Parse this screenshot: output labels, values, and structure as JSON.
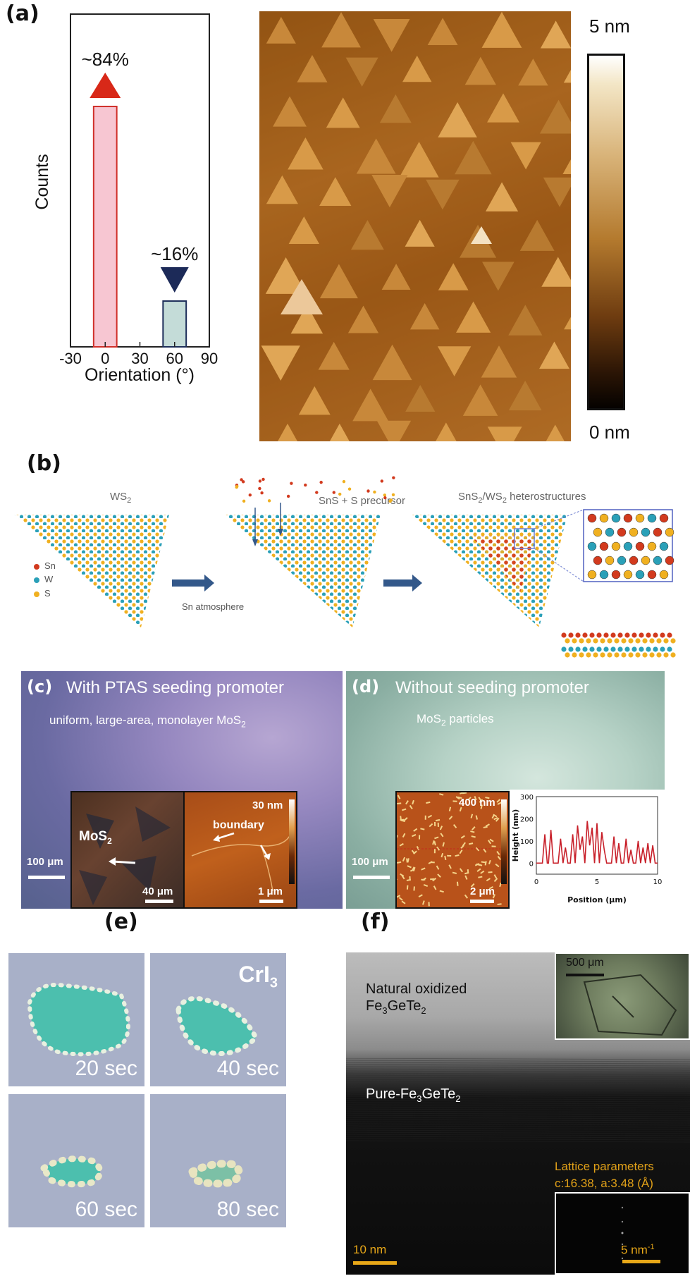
{
  "panel_labels": {
    "a": "(a)",
    "b": "(b)",
    "e": "(e)",
    "f": "(f)"
  },
  "panel_a": {
    "chart_data": {
      "type": "bar",
      "title": "",
      "xlabel": "Orientation (°)",
      "ylabel": "Counts",
      "x_ticks": [
        "-30",
        "0",
        "30",
        "60",
        "90"
      ],
      "xlim": [
        -30,
        90
      ],
      "ylim": [
        0,
        100
      ],
      "bars": [
        {
          "x": 0,
          "width": 20,
          "value": 84,
          "label": "~84%",
          "fill": "#f7c6d2",
          "stroke": "#d0302a",
          "marker": "up-triangle",
          "marker_color": "#d82818"
        },
        {
          "x": 60,
          "width": 20,
          "value": 16,
          "label": "~16%",
          "fill": "#c4dcd8",
          "stroke": "#1d2e5a",
          "marker": "down-triangle",
          "marker_color": "#1c2a58"
        }
      ]
    },
    "colorbar": {
      "max": "5 nm",
      "min": "0 nm"
    }
  },
  "panel_b": {
    "stage1_title": "WS",
    "stage1_sub": "2",
    "stage2_title": "SnS + S precursor",
    "stage3_pre": "SnS",
    "stage3_sub1": "2",
    "stage3_mid": "/WS",
    "stage3_sub2": "2",
    "stage3_post": " heterostructures",
    "arrow_label": "Sn atmosphere",
    "legend": [
      {
        "label": "Sn",
        "color": "#d23a1e"
      },
      {
        "label": "W",
        "color": "#2aa0b8"
      },
      {
        "label": "S",
        "color": "#f0b020"
      }
    ]
  },
  "panel_c": {
    "label": "(c)",
    "heading": "With PTAS seeding promoter",
    "sub_pre": "uniform, large-area, monolayer MoS",
    "sub_sub": "2",
    "scalebar": "100 μm",
    "inset1_label": "MoS",
    "inset1_sub": "2",
    "inset1_scalebar": "40 μm",
    "inset2_colorbar": "30 nm",
    "inset2_label": "boundary",
    "inset2_scalebar": "1 μm"
  },
  "panel_d": {
    "label": "(d)",
    "heading": "Without seeding promoter",
    "sub_pre": "MoS",
    "sub_sub": "2",
    "sub_post": " particles",
    "scalebar": "100 μm",
    "inset1_colorbar": "400 nm",
    "inset1_scalebar": "2 μm",
    "chart_data": {
      "type": "line",
      "title": "",
      "xlabel": "Position (μm)",
      "ylabel": "Height (nm)",
      "xlim": [
        0,
        10
      ],
      "ylim": [
        -50,
        300
      ],
      "x_ticks": [
        "0",
        "5",
        "10"
      ],
      "y_ticks": [
        "0",
        "100",
        "200",
        "300"
      ],
      "series": [
        {
          "color": "#c8202a",
          "x": [
            0,
            0.5,
            0.7,
            0.9,
            1.0,
            1.2,
            1.4,
            1.6,
            1.8,
            2.0,
            2.2,
            2.4,
            2.6,
            2.8,
            3.0,
            3.2,
            3.4,
            3.6,
            3.8,
            4.0,
            4.2,
            4.4,
            4.6,
            4.8,
            5.0,
            5.2,
            5.4,
            5.6,
            5.8,
            6.0,
            6.2,
            6.4,
            6.6,
            6.8,
            7.0,
            7.2,
            7.4,
            7.6,
            7.8,
            8.0,
            8.2,
            8.4,
            8.6,
            8.8,
            9.0,
            9.2,
            9.4,
            9.6,
            9.8,
            10.0
          ],
          "y": [
            0,
            0,
            130,
            0,
            0,
            150,
            0,
            0,
            0,
            110,
            0,
            70,
            0,
            0,
            130,
            0,
            170,
            60,
            120,
            0,
            190,
            80,
            160,
            0,
            180,
            0,
            140,
            60,
            0,
            0,
            0,
            120,
            0,
            90,
            0,
            0,
            110,
            0,
            60,
            0,
            0,
            100,
            0,
            70,
            0,
            90,
            0,
            80,
            0,
            0
          ]
        }
      ]
    }
  },
  "panel_e": {
    "title_pre": "CrI",
    "title_sub": "3",
    "frames": [
      "20 sec",
      "40 sec",
      "60 sec",
      "80 sec"
    ]
  },
  "panel_f": {
    "oxidized_line1": "Natural oxidized",
    "oxidized_pre": "Fe",
    "oxidized_sub1": "3",
    "oxidized_mid": "GeTe",
    "oxidized_sub2": "2",
    "pure_pre": "Pure-Fe",
    "pure_sub1": "3",
    "pure_mid": "GeTe",
    "pure_sub2": "2",
    "lattice_line1": "Lattice parameters",
    "lattice_line2": "c:16.38,  a:3.48 (Å)",
    "inset_scalebar": "500 μm",
    "scalebar": "10 nm",
    "fft_scalebar": "5 nm",
    "fft_scalebar_sup": "-1"
  }
}
